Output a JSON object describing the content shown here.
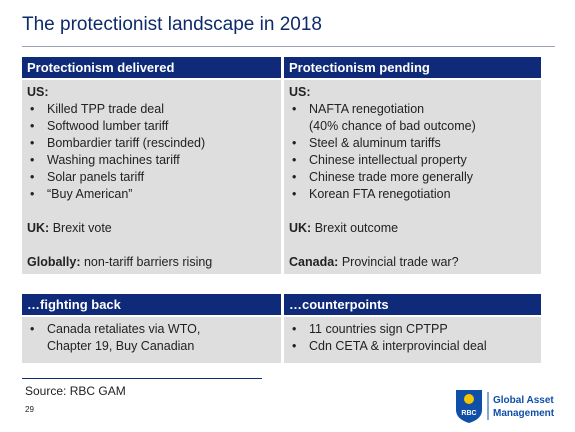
{
  "title": "The protectionist landscape in 2018",
  "panels": [
    {
      "heading": "Protectionism delivered",
      "groups": [
        {
          "label": "US:",
          "items": [
            [
              "Killed TPP trade deal"
            ],
            [
              "Softwood lumber tariff"
            ],
            [
              "Bombardier tariff (rescinded)"
            ],
            [
              "Washing machines tariff"
            ],
            [
              "Solar panels tariff"
            ],
            [
              "“Buy American”"
            ]
          ]
        },
        {
          "label": "UK:",
          "text": "Brexit vote"
        },
        {
          "label": "Globally:",
          "text": "non-tariff barriers rising"
        }
      ]
    },
    {
      "heading": "Protectionism pending",
      "groups": [
        {
          "label": "US:",
          "items": [
            [
              "NAFTA renegotiation",
              "(40% chance of bad outcome)"
            ],
            [
              "Steel & aluminum tariffs"
            ],
            [
              "Chinese intellectual property"
            ],
            [
              "Chinese trade more generally"
            ],
            [
              "Korean FTA renegotiation"
            ]
          ]
        },
        {
          "label": "UK:",
          "text": "Brexit outcome"
        },
        {
          "label": "Canada:",
          "text": "Provincial trade war?"
        }
      ]
    },
    {
      "heading": "…fighting back",
      "groups": [
        {
          "items": [
            [
              "Canada retaliates via WTO,",
              "Chapter 19, Buy Canadian"
            ]
          ]
        }
      ]
    },
    {
      "heading": "…counterpoints",
      "groups": [
        {
          "items": [
            [
              "11 countries sign CPTPP"
            ],
            [
              "Cdn CETA & interprovincial deal"
            ]
          ]
        }
      ]
    }
  ],
  "source": "Source: RBC GAM",
  "page_number": "29",
  "logo": {
    "badge": "RBC",
    "lines": [
      "Global Asset",
      "Management"
    ]
  }
}
